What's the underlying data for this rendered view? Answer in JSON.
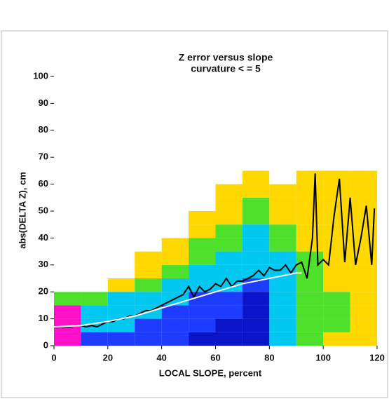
{
  "chart_data": {
    "type": "heatmap-line",
    "title": "Z error versus slope",
    "subtitle": "curvature < = 5",
    "x_label": "LOCAL SLOPE, percent",
    "y_label": "abs(DELTA Z), cm",
    "xlim": [
      0,
      120
    ],
    "ylim": [
      0,
      100
    ],
    "xticks": [
      0,
      20,
      40,
      60,
      80,
      100,
      120
    ],
    "yticks": [
      0,
      10,
      20,
      30,
      40,
      50,
      60,
      70,
      80,
      90,
      100
    ],
    "level_colors": [
      "#ffffff",
      "#ffd800",
      "#4ee02a",
      "#00c8f0",
      "#1e3cff",
      "#0a14c8",
      "#ff10c8"
    ],
    "xbins": [
      0,
      10,
      20,
      30,
      40,
      50,
      60,
      70,
      80,
      90,
      100,
      110,
      120
    ],
    "ybins": [
      0,
      5,
      10,
      15,
      20,
      25,
      30,
      35,
      40,
      45,
      50,
      55,
      60,
      65,
      70
    ],
    "levels": [
      [
        6,
        6,
        6,
        2,
        0,
        0,
        0,
        0,
        0,
        0,
        0,
        0,
        0,
        0
      ],
      [
        4,
        3,
        3,
        2,
        0,
        0,
        0,
        0,
        0,
        0,
        0,
        0,
        0,
        0
      ],
      [
        4,
        3,
        3,
        3,
        1,
        0,
        0,
        0,
        0,
        0,
        0,
        0,
        0,
        0
      ],
      [
        4,
        4,
        3,
        3,
        2,
        1,
        1,
        0,
        0,
        0,
        0,
        0,
        0,
        0
      ],
      [
        4,
        4,
        4,
        3,
        3,
        2,
        1,
        1,
        0,
        0,
        0,
        0,
        0,
        0
      ],
      [
        5,
        4,
        4,
        4,
        3,
        3,
        2,
        2,
        1,
        1,
        0,
        0,
        0,
        0
      ],
      [
        5,
        5,
        4,
        4,
        3,
        3,
        3,
        2,
        2,
        1,
        1,
        1,
        0,
        0
      ],
      [
        5,
        5,
        5,
        5,
        4,
        3,
        3,
        3,
        3,
        2,
        2,
        1,
        1,
        0
      ],
      [
        3,
        3,
        3,
        3,
        3,
        3,
        3,
        2,
        2,
        1,
        1,
        1,
        0,
        0
      ],
      [
        2,
        2,
        2,
        2,
        2,
        2,
        2,
        1,
        1,
        1,
        1,
        1,
        1,
        0
      ],
      [
        1,
        2,
        2,
        2,
        1,
        1,
        1,
        1,
        1,
        1,
        1,
        1,
        1,
        0
      ],
      [
        1,
        1,
        1,
        1,
        1,
        1,
        1,
        1,
        1,
        1,
        1,
        1,
        1,
        0
      ]
    ],
    "series": [
      {
        "color": "#000000",
        "x": [
          0,
          2,
          4,
          6,
          8,
          10,
          12,
          14,
          16,
          18,
          20,
          22,
          24,
          26,
          28,
          30,
          32,
          34,
          36,
          38,
          40,
          42,
          44,
          46,
          48,
          50,
          52,
          54,
          56,
          58,
          60,
          62,
          64,
          66,
          68,
          70,
          72,
          74,
          76,
          78,
          80,
          82,
          84,
          86,
          88,
          90,
          92,
          94,
          96,
          97,
          98,
          100,
          102,
          104,
          106,
          108,
          110,
          112,
          114,
          116,
          118,
          119
        ],
        "values": [
          7,
          7,
          7,
          7,
          7.5,
          7.5,
          7,
          7.5,
          7,
          8,
          9,
          9,
          10,
          10,
          11,
          11,
          12,
          13,
          13,
          14,
          15,
          16,
          17,
          18,
          19,
          22,
          18,
          22,
          20,
          21,
          23,
          22,
          25,
          22,
          24,
          24,
          25,
          26,
          28,
          26,
          29,
          28,
          28,
          30,
          27,
          30,
          31,
          25,
          40,
          64,
          30,
          32,
          30,
          48,
          62,
          31,
          55,
          30,
          40,
          52,
          30,
          51
        ]
      },
      {
        "color": "#ffffff",
        "x": [
          0,
          10,
          20,
          30,
          40,
          50,
          60,
          70,
          80,
          90,
          92
        ],
        "values": [
          7,
          7.5,
          9,
          11,
          14,
          17,
          20,
          23,
          25,
          27,
          27
        ]
      }
    ]
  }
}
